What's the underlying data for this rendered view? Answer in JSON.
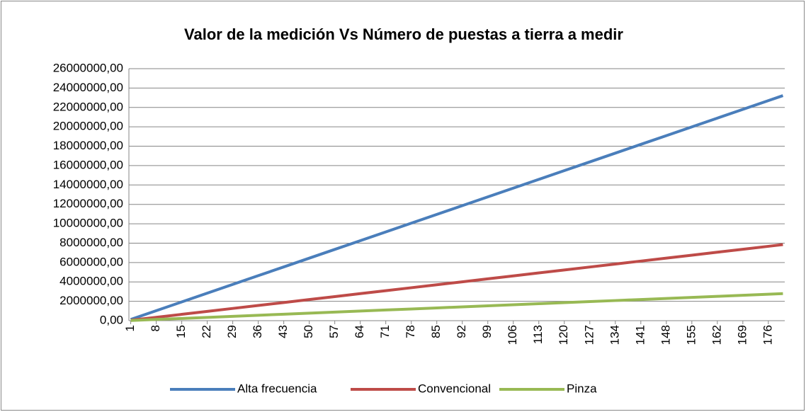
{
  "chart_data": {
    "type": "line",
    "title": "Valor de la medición Vs Número de puestas a tierra a medir",
    "x": [
      1,
      8,
      15,
      22,
      29,
      36,
      43,
      50,
      57,
      64,
      71,
      78,
      85,
      92,
      99,
      106,
      113,
      120,
      127,
      134,
      141,
      148,
      155,
      162,
      169,
      176,
      180
    ],
    "series": [
      {
        "name": "Alta frecuencia",
        "color": "#4a7ebb",
        "values": [
          129000,
          1032000,
          1935000,
          2838000,
          3741000,
          4644000,
          5547000,
          6450000,
          7353000,
          8256000,
          9159000,
          10062000,
          10965000,
          11868000,
          12771000,
          13674000,
          14577000,
          15480000,
          16383000,
          17286000,
          18189000,
          19092000,
          19995000,
          20898000,
          21801000,
          22704000,
          23220000
        ]
      },
      {
        "name": "Convencional",
        "color": "#be4b48",
        "values": [
          43600,
          348800,
          654000,
          959200,
          1264400,
          1569600,
          1874800,
          2180000,
          2485200,
          2790400,
          3095600,
          3400800,
          3706000,
          4011200,
          4316400,
          4621600,
          4926800,
          5232000,
          5537200,
          5842400,
          6147600,
          6452800,
          6758000,
          7063200,
          7368400,
          7673600,
          7848000
        ]
      },
      {
        "name": "Pinza",
        "color": "#98b954",
        "values": [
          15500,
          124000,
          232500,
          341000,
          449500,
          558000,
          666500,
          775000,
          883500,
          992000,
          1100500,
          1209000,
          1317500,
          1426000,
          1534500,
          1643000,
          1751500,
          1860000,
          1968500,
          2077000,
          2185500,
          2294000,
          2402500,
          2511000,
          2619500,
          2728000,
          2790000
        ]
      }
    ],
    "xlim": [
      0.5,
      180.5
    ],
    "xticks": [
      1,
      8,
      15,
      22,
      29,
      36,
      43,
      50,
      57,
      64,
      71,
      78,
      85,
      92,
      99,
      106,
      113,
      120,
      127,
      134,
      141,
      148,
      155,
      162,
      169,
      176
    ],
    "ylim": [
      0,
      26000000
    ],
    "yticks": [
      {
        "value": 0,
        "label": "0,00"
      },
      {
        "value": 2000000,
        "label": "2000000,00"
      },
      {
        "value": 4000000,
        "label": "4000000,00"
      },
      {
        "value": 6000000,
        "label": "6000000,00"
      },
      {
        "value": 8000000,
        "label": "8000000,00"
      },
      {
        "value": 10000000,
        "label": "10000000,00"
      },
      {
        "value": 12000000,
        "label": "12000000,00"
      },
      {
        "value": 14000000,
        "label": "14000000,00"
      },
      {
        "value": 16000000,
        "label": "16000000,00"
      },
      {
        "value": 18000000,
        "label": "18000000,00"
      },
      {
        "value": 20000000,
        "label": "20000000,00"
      },
      {
        "value": 22000000,
        "label": "22000000,00"
      },
      {
        "value": 24000000,
        "label": "24000000,00"
      },
      {
        "value": 26000000,
        "label": "26000000,00"
      }
    ],
    "grid": true,
    "legend": "bottom"
  }
}
